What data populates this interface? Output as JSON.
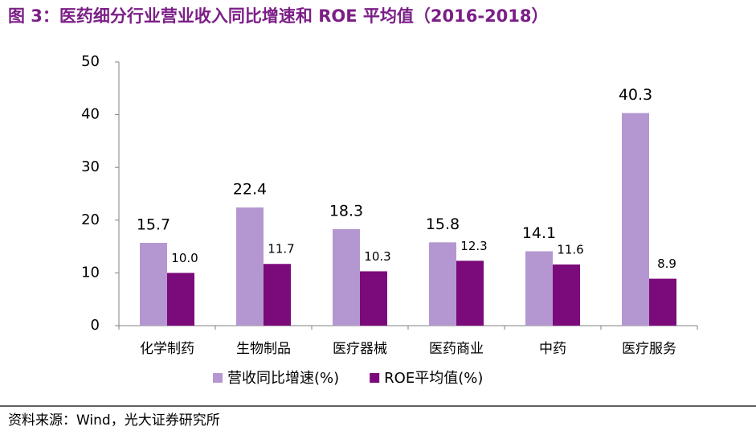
{
  "chart_data": {
    "type": "bar",
    "title": "图 3：医药细分行业营业收入同比增速和 ROE 平均值（2016-2018）",
    "categories": [
      "化学制药",
      "生物制品",
      "医疗器械",
      "医药商业",
      "中药",
      "医疗服务"
    ],
    "series": [
      {
        "name": "营收同比增速(%)",
        "color": "#b497d0",
        "values": [
          15.7,
          22.4,
          18.3,
          15.8,
          14.1,
          40.3
        ]
      },
      {
        "name": "ROE平均值(%)",
        "color": "#7b0a7b",
        "values": [
          10.0,
          11.7,
          10.3,
          12.3,
          11.6,
          8.9
        ],
        "value_labels": [
          "10.0",
          "11.7",
          "10.3",
          "12.3",
          "11.6",
          "8.9"
        ]
      }
    ],
    "ylim": [
      0,
      50
    ],
    "yticks": [
      0,
      10,
      20,
      30,
      40,
      50
    ]
  },
  "source": "资料来源：Wind，光大证券研究所"
}
